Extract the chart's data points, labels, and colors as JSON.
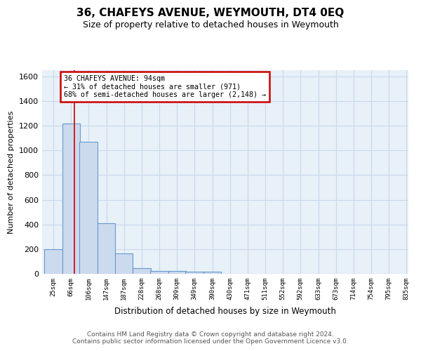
{
  "title": "36, CHAFEYS AVENUE, WEYMOUTH, DT4 0EQ",
  "subtitle": "Size of property relative to detached houses in Weymouth",
  "xlabel": "Distribution of detached houses by size in Weymouth",
  "ylabel": "Number of detached properties",
  "footer_line1": "Contains HM Land Registry data © Crown copyright and database right 2024.",
  "footer_line2": "Contains public sector information licensed under the Open Government Licence v3.0.",
  "bar_edges": [
    25,
    66,
    106,
    147,
    187,
    228,
    268,
    309,
    349,
    390,
    430,
    471,
    511,
    552,
    592,
    633,
    673,
    714,
    754,
    795,
    835
  ],
  "bar_heights": [
    200,
    1220,
    1070,
    410,
    165,
    48,
    25,
    20,
    15,
    15,
    0,
    0,
    0,
    0,
    0,
    0,
    0,
    0,
    0,
    0
  ],
  "bar_color": "#ccdaee",
  "bar_edge_color": "#6699cc",
  "grid_color": "#c8d8ec",
  "background_color": "#e8f0f8",
  "vline_x": 94,
  "vline_color": "#cc0000",
  "annotation_text": "36 CHAFEYS AVENUE: 94sqm\n← 31% of detached houses are smaller (971)\n68% of semi-detached houses are larger (2,148) →",
  "annotation_box_color": "#cc0000",
  "ylim": [
    0,
    1650
  ],
  "xlim": [
    20,
    860
  ],
  "yticks": [
    0,
    200,
    400,
    600,
    800,
    1000,
    1200,
    1400,
    1600
  ],
  "tick_labels": [
    "25sqm",
    "66sqm",
    "106sqm",
    "147sqm",
    "187sqm",
    "228sqm",
    "268sqm",
    "309sqm",
    "349sqm",
    "390sqm",
    "430sqm",
    "471sqm",
    "511sqm",
    "552sqm",
    "592sqm",
    "633sqm",
    "673sqm",
    "714sqm",
    "754sqm",
    "795sqm",
    "835sqm"
  ]
}
